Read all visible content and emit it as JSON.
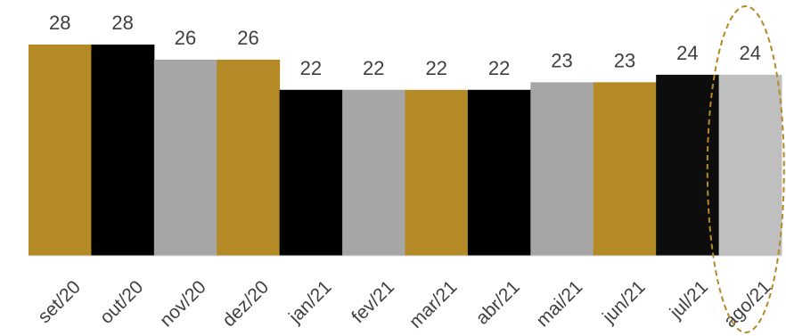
{
  "chart_data": {
    "type": "bar",
    "categories": [
      "set/20",
      "out/20",
      "nov/20",
      "dez/20",
      "jan/21",
      "fev/21",
      "mar/21",
      "abr/21",
      "mai/21",
      "jun/21",
      "jul/21",
      "ago/21"
    ],
    "values": [
      28,
      28,
      26,
      26,
      22,
      22,
      22,
      22,
      23,
      23,
      24,
      24
    ],
    "colors": [
      "#b38a25",
      "#000000",
      "#a6a6a6",
      "#b38a25",
      "#000000",
      "#a6a6a6",
      "#b38a25",
      "#000000",
      "#a6a6a6",
      "#b38a25",
      "#0d0d0d",
      "#bfbfbf"
    ],
    "ylim": [
      0,
      28
    ],
    "data_labels": true,
    "grid": false,
    "highlight": {
      "category": "ago/21",
      "style": "dashed-ellipse",
      "color": "#b38a25"
    },
    "title": "",
    "xlabel": "",
    "ylabel": ""
  }
}
